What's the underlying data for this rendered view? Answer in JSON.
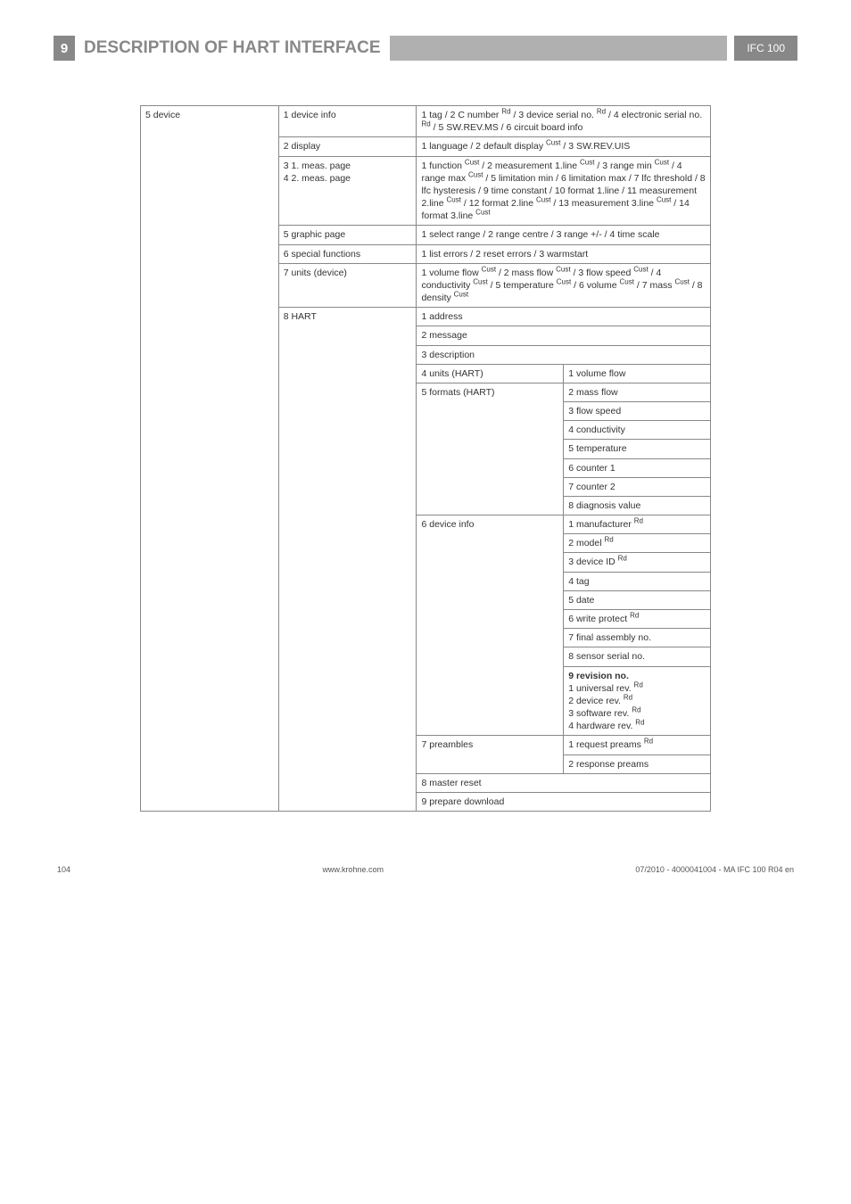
{
  "header": {
    "section_number": "9",
    "title": "DESCRIPTION OF HART INTERFACE",
    "badge": "IFC 100"
  },
  "colors": {
    "header_gray": "#888888",
    "rule_gray": "#b0b0b0",
    "text": "#333333",
    "border": "#888888"
  },
  "table": {
    "root": "5 device",
    "rows": [
      {
        "l2": "1 device info",
        "merge34": "1 tag / 2 C number <sup>Rd</sup> / 3 device serial no. <sup>Rd</sup> / 4 electronic serial no. <sup>Rd</sup> / 5 SW.REV.MS / 6 circuit board info"
      },
      {
        "l2": "2 display",
        "merge34": "1 language / 2 default display <sup>Cust</sup> / 3 SW.REV.UIS"
      },
      {
        "l2": "3 1. meas. page<br>4 2. meas. page",
        "merge34": "1 function <sup>Cust</sup> / 2 measurement 1.line <sup>Cust</sup> / 3 range min <sup>Cust</sup> / 4 range max <sup>Cust</sup> / 5 limitation min / 6 limitation max / 7 lfc threshold / 8 lfc hysteresis / 9 time constant / 10 format 1.line / 11 measurement 2.line <sup>Cust</sup> / 12 format 2.line <sup>Cust</sup> / 13 measurement 3.line <sup>Cust</sup> / 14 format 3.line <sup>Cust</sup>"
      },
      {
        "l2": "5 graphic page",
        "merge34": "1 select range / 2 range centre / 3 range +/- / 4 time scale"
      },
      {
        "l2": "6 special functions",
        "merge34": "1 list errors / 2 reset errors / 3 warmstart"
      },
      {
        "l2": "7 units (device)",
        "merge34": "1 volume flow <sup>Cust</sup> / 2 mass flow <sup>Cust</sup> / 3 flow speed <sup>Cust</sup> / 4 conductivity <sup>Cust</sup> / 5 temperature <sup>Cust</sup> / 6 volume <sup>Cust</sup> / 7 mass <sup>Cust</sup> / 8 density <sup>Cust</sup>"
      },
      {
        "l2": "8 HART",
        "l2_rowspan": 27,
        "merge34": "1 address"
      },
      {
        "merge34": "2 message"
      },
      {
        "merge34": "3 description"
      },
      {
        "l3": "4 units (HART)",
        "l4": "1 volume flow"
      },
      {
        "l3": "5 formats (HART)",
        "l3_rowspan": 7,
        "l4": "2 mass flow"
      },
      {
        "l4": "3 flow speed"
      },
      {
        "l4": "4 conductivity"
      },
      {
        "l4": "5 temperature"
      },
      {
        "l4": "6 counter 1"
      },
      {
        "l4": "7 counter 2"
      },
      {
        "l4": "8 diagnosis value"
      },
      {
        "l3": "6 device info",
        "l3_rowspan": 9,
        "l4": "1 manufacturer <sup>Rd</sup>"
      },
      {
        "l4": "2 model <sup>Rd</sup>"
      },
      {
        "l4": "3 device ID <sup>Rd</sup>"
      },
      {
        "l4": "4 tag"
      },
      {
        "l4": "5 date"
      },
      {
        "l4": "6 write protect <sup>Rd</sup>"
      },
      {
        "l4": "7 final assembly no."
      },
      {
        "l4": "8 sensor serial no."
      },
      {
        "l4": "<b>9 revision no.</b><br>1 universal rev. <sup>Rd</sup><br>2 device rev. <sup>Rd</sup><br>3 software rev. <sup>Rd</sup><br>4 hardware rev. <sup>Rd</sup>"
      },
      {
        "l3": "7 preambles",
        "l3_rowspan": 2,
        "l4": "1 request preams <sup>Rd</sup>"
      },
      {
        "l4": "2 response preams"
      },
      {
        "merge34": "8 master reset"
      },
      {
        "merge34": "9 prepare download"
      }
    ]
  },
  "footer": {
    "page": "104",
    "site": "www.krohne.com",
    "docref": "07/2010 - 4000041004 - MA IFC 100 R04 en"
  }
}
